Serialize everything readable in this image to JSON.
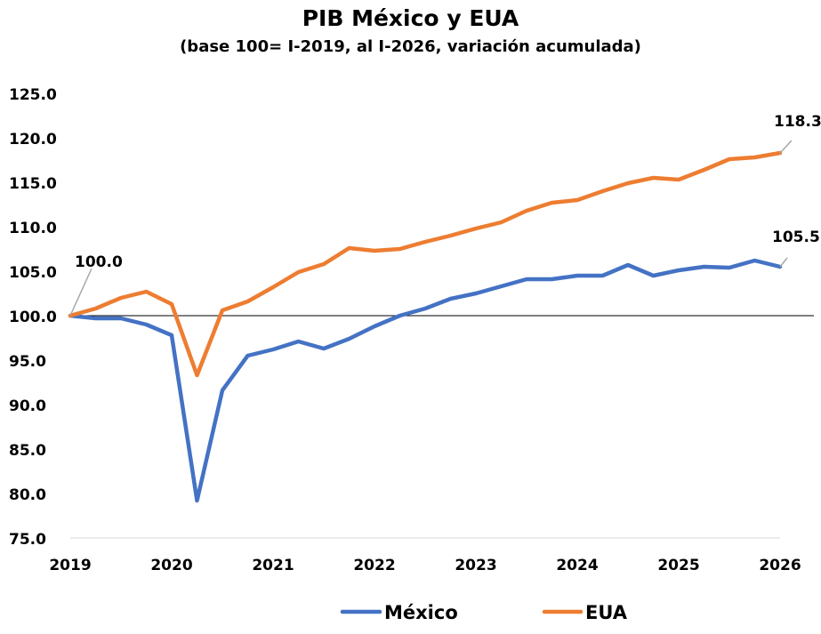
{
  "chart_data": {
    "type": "line",
    "title": "PIB México y EUA",
    "subtitle": "(base 100= I-2019, al I-2026, variación acumulada)",
    "xlabel": "",
    "ylabel": "",
    "ylim": [
      75,
      125
    ],
    "yticks": [
      "125.0",
      "120.0",
      "115.0",
      "110.0",
      "105.0",
      "100.0",
      "95.0",
      "90.0",
      "85.0",
      "80.0",
      "75.0"
    ],
    "year_ticks": [
      "2019",
      "2020",
      "2021",
      "2022",
      "2023",
      "2024",
      "2025",
      "2026"
    ],
    "x": [
      "I-2019",
      "II-2019",
      "III-2019",
      "IV-2019",
      "I-2020",
      "II-2020",
      "III-2020",
      "IV-2020",
      "I-2021",
      "II-2021",
      "III-2021",
      "IV-2021",
      "I-2022",
      "II-2022",
      "III-2022",
      "IV-2022",
      "I-2023",
      "II-2023",
      "III-2023",
      "IV-2023",
      "I-2024",
      "II-2024",
      "III-2024",
      "IV-2024",
      "I-2025",
      "II-2025",
      "III-2025",
      "IV-2025",
      "I-2026"
    ],
    "reference_line": 100,
    "series": [
      {
        "name": "México",
        "color": "#4472C4",
        "values": [
          100.0,
          99.7,
          99.7,
          99.0,
          97.8,
          79.2,
          91.6,
          95.5,
          96.2,
          97.1,
          96.3,
          97.4,
          98.8,
          100.0,
          100.8,
          101.9,
          102.5,
          103.3,
          104.1,
          104.1,
          104.5,
          104.5,
          105.7,
          104.5,
          105.1,
          105.5,
          105.4,
          106.2,
          105.5
        ]
      },
      {
        "name": "EUA",
        "color": "#ED7D31",
        "values": [
          100.0,
          100.8,
          102.0,
          102.7,
          101.3,
          93.3,
          100.6,
          101.6,
          103.2,
          104.9,
          105.8,
          107.6,
          107.3,
          107.5,
          108.3,
          109.0,
          109.8,
          110.5,
          111.8,
          112.7,
          113.0,
          114.0,
          114.9,
          115.5,
          115.3,
          116.4,
          117.6,
          117.8,
          118.3
        ]
      }
    ],
    "annotations": [
      {
        "series": 0,
        "point": 0,
        "text": "100.0"
      },
      {
        "series": 1,
        "point": 28,
        "text": "118.3"
      },
      {
        "series": 0,
        "point": 28,
        "text": "105.5"
      }
    ],
    "legend": {
      "placement": "bottom-center",
      "items": [
        "México",
        "EUA"
      ]
    },
    "grid": false
  }
}
